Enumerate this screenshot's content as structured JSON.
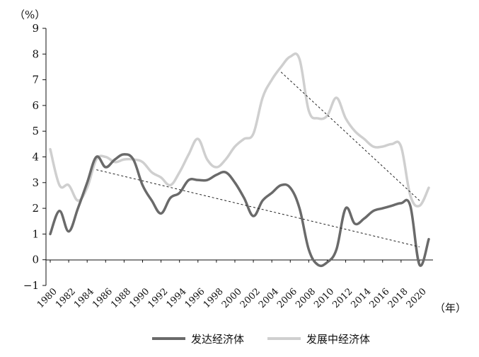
{
  "colors": {
    "developed": "#6a6a6a",
    "developing": "#cfcfcf",
    "trend": "#222222",
    "axis": "#111111"
  },
  "chart_data": {
    "type": "line",
    "title": "",
    "ylabel": "（%）",
    "xlabel": "（年）",
    "ylim": [
      -1,
      9
    ],
    "yticks": [
      -1,
      0,
      1,
      2,
      3,
      4,
      5,
      6,
      7,
      8,
      9
    ],
    "ytick_labels": [
      "−1",
      "0",
      "1",
      "2",
      "3",
      "4",
      "5",
      "6",
      "7",
      "8",
      "9"
    ],
    "xlim": [
      1980,
      2021
    ],
    "xticks": [
      1980,
      1982,
      1984,
      1986,
      1988,
      1990,
      1992,
      1994,
      1996,
      1998,
      2000,
      2002,
      2004,
      2006,
      2008,
      2010,
      2012,
      2014,
      2016,
      2018,
      2020
    ],
    "xtick_labels": [
      "1980",
      "1982",
      "1984",
      "1986",
      "1988",
      "1990",
      "1992",
      "1994",
      "1996",
      "1998",
      "2000",
      "2002",
      "2004",
      "2006",
      "2008",
      "2010",
      "2012",
      "2014",
      "2016",
      "2018",
      "2020"
    ],
    "legend_position": "bottom-center",
    "grid": false,
    "x": [
      1980,
      1981,
      1982,
      1983,
      1984,
      1985,
      1986,
      1987,
      1988,
      1989,
      1990,
      1991,
      1992,
      1993,
      1994,
      1995,
      1996,
      1997,
      1998,
      1999,
      2000,
      2001,
      2002,
      2003,
      2004,
      2005,
      2006,
      2007,
      2008,
      2009,
      2010,
      2011,
      2012,
      2013,
      2014,
      2015,
      2016,
      2017,
      2018,
      2019,
      2020,
      2021
    ],
    "series": [
      {
        "name": "发达经济体",
        "values": [
          1.0,
          1.9,
          1.1,
          2.0,
          3.0,
          4.0,
          3.6,
          3.9,
          4.1,
          3.9,
          2.9,
          2.3,
          1.8,
          2.4,
          2.6,
          3.1,
          3.1,
          3.1,
          3.3,
          3.4,
          3.0,
          2.4,
          1.7,
          2.3,
          2.6,
          2.9,
          2.8,
          2.0,
          0.4,
          -0.2,
          -0.1,
          0.4,
          2.0,
          1.4,
          1.6,
          1.9,
          2.0,
          2.1,
          2.2,
          2.1,
          -0.2,
          0.8
        ]
      },
      {
        "name": "发展中经济体",
        "values": [
          4.3,
          2.9,
          2.9,
          2.3,
          2.8,
          3.9,
          4.0,
          3.8,
          3.9,
          3.9,
          3.8,
          3.4,
          3.2,
          2.9,
          3.4,
          4.1,
          4.7,
          3.9,
          3.6,
          3.9,
          4.4,
          4.7,
          4.9,
          6.3,
          7.0,
          7.5,
          7.9,
          7.8,
          5.8,
          5.5,
          5.6,
          6.3,
          5.5,
          5.0,
          4.7,
          4.4,
          4.4,
          4.5,
          4.4,
          2.5,
          2.1,
          2.8
        ]
      }
    ],
    "trendlines": [
      {
        "from": [
          1985,
          3.5
        ],
        "to": [
          2020,
          0.5
        ]
      },
      {
        "from": [
          2005,
          7.3
        ],
        "to": [
          2020,
          2.3
        ]
      }
    ]
  }
}
